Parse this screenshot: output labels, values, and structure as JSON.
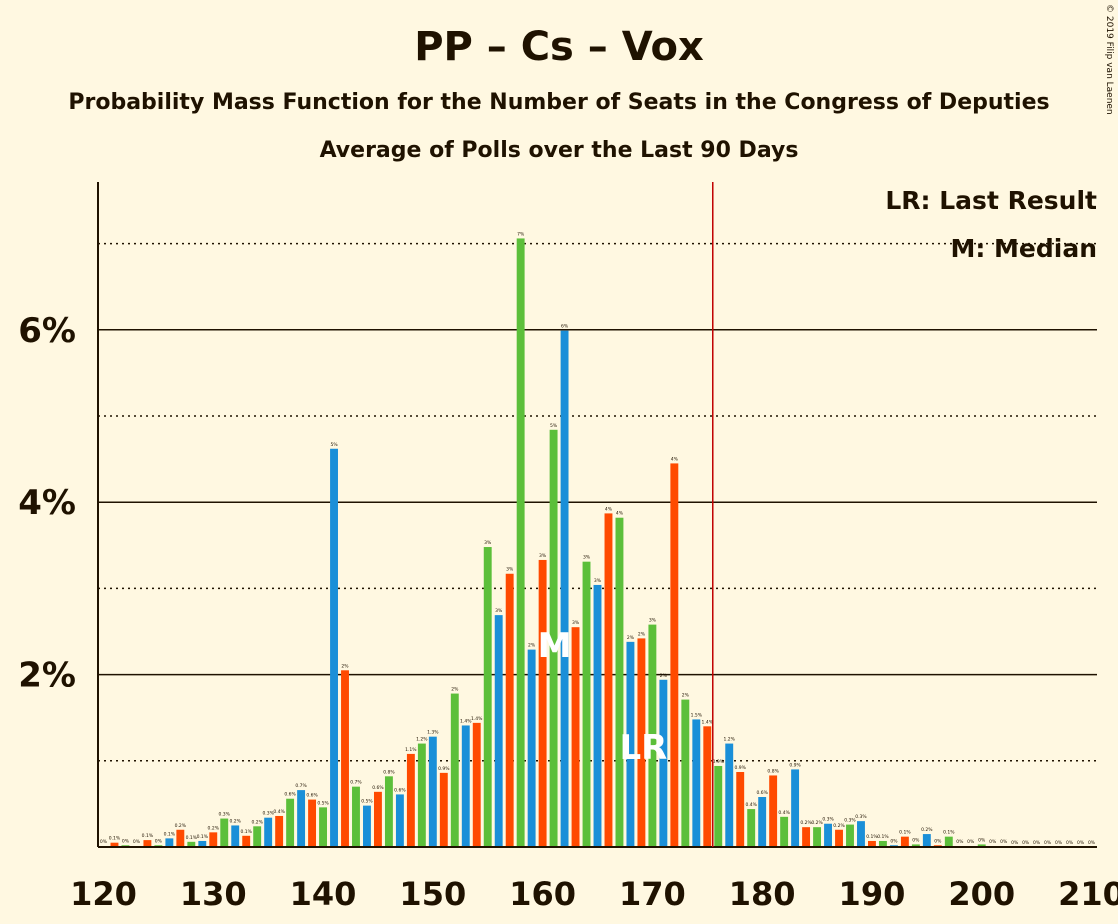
{
  "title": "PP – Cs – Vox",
  "subtitle": "Probability Mass Function for the Number of Seats in the Congress of Deputies",
  "subtitle2": "Average of Polls over the Last 90 Days",
  "copyright": "© 2019 Filip van Laenen",
  "legend": {
    "lr": "LR: Last Result",
    "median": "M: Median"
  },
  "colors": {
    "blue": "#1a8fd8",
    "orange": "#ff4a00",
    "green": "#5cbf3a",
    "majority_line": "#c00000",
    "background": "#fff8e1",
    "text": "#1f1200"
  },
  "chart_data": {
    "type": "bar",
    "xlabel": "",
    "ylabel": "",
    "xlim": [
      120,
      210
    ],
    "ylim": [
      0,
      7.7
    ],
    "y_ticks": [
      "2%",
      "4%",
      "6%"
    ],
    "x_ticks": [
      "120",
      "130",
      "140",
      "150",
      "160",
      "170",
      "180",
      "190",
      "200",
      "210"
    ],
    "majority_line": 176,
    "median_seat": 161,
    "last_result_seat": 169,
    "median_marker": "M",
    "last_result_marker": "LR",
    "bar_labels": [
      {
        "seat": 120,
        "value": 0.01,
        "label": "0%"
      },
      {
        "seat": 121,
        "value": 0.05,
        "label": "0.1%"
      },
      {
        "seat": 122,
        "value": 0.02,
        "label": "0%"
      },
      {
        "seat": 123,
        "value": 0.01,
        "label": "0%"
      },
      {
        "seat": 124,
        "value": 0.08,
        "label": "0.1%"
      },
      {
        "seat": 125,
        "value": 0.02,
        "label": "0%"
      },
      {
        "seat": 126,
        "value": 0.1,
        "label": "0.1%"
      },
      {
        "seat": 127,
        "value": 0.2,
        "label": "0.2%"
      },
      {
        "seat": 128,
        "value": 0.06,
        "label": "0.1%"
      },
      {
        "seat": 129,
        "value": 0.07,
        "label": "0.1%"
      },
      {
        "seat": 130,
        "value": 0.17,
        "label": "0.2%"
      },
      {
        "seat": 131,
        "value": 0.33,
        "label": "0.3%"
      },
      {
        "seat": 132,
        "value": 0.25,
        "label": "0.2%"
      },
      {
        "seat": 133,
        "value": 0.13,
        "label": "0.1%"
      },
      {
        "seat": 134,
        "value": 0.24,
        "label": "0.2%"
      },
      {
        "seat": 135,
        "value": 0.34,
        "label": "0.3%"
      },
      {
        "seat": 136,
        "value": 0.36,
        "label": "0.4%"
      },
      {
        "seat": 137,
        "value": 0.56,
        "label": "0.6%"
      },
      {
        "seat": 138,
        "value": 0.66,
        "label": "0.7%"
      },
      {
        "seat": 139,
        "value": 0.55,
        "label": "0.6%"
      },
      {
        "seat": 140,
        "value": 0.46,
        "label": "0.5%"
      },
      {
        "seat": 141,
        "value": 4.62,
        "label": "5%"
      },
      {
        "seat": 142,
        "value": 2.05,
        "label": "2%"
      },
      {
        "seat": 143,
        "value": 0.7,
        "label": "0.7%"
      },
      {
        "seat": 144,
        "value": 0.48,
        "label": "0.5%"
      },
      {
        "seat": 145,
        "value": 0.64,
        "label": "0.6%"
      },
      {
        "seat": 146,
        "value": 0.82,
        "label": "0.8%"
      },
      {
        "seat": 147,
        "value": 0.61,
        "label": "0.6%"
      },
      {
        "seat": 148,
        "value": 1.08,
        "label": "1.1%"
      },
      {
        "seat": 149,
        "value": 1.2,
        "label": "1.2%"
      },
      {
        "seat": 150,
        "value": 1.28,
        "label": "1.3%"
      },
      {
        "seat": 151,
        "value": 0.86,
        "label": "0.9%"
      },
      {
        "seat": 152,
        "value": 1.78,
        "label": "2%"
      },
      {
        "seat": 153,
        "value": 1.41,
        "label": "1.4%"
      },
      {
        "seat": 154,
        "value": 1.44,
        "label": "1.4%"
      },
      {
        "seat": 155,
        "value": 3.48,
        "label": "3%"
      },
      {
        "seat": 156,
        "value": 2.69,
        "label": "3%"
      },
      {
        "seat": 157,
        "value": 3.17,
        "label": "3%"
      },
      {
        "seat": 158,
        "value": 7.06,
        "label": "7%"
      },
      {
        "seat": 159,
        "value": 2.29,
        "label": "2%"
      },
      {
        "seat": 160,
        "value": 3.33,
        "label": "3%"
      },
      {
        "seat": 161,
        "value": 4.84,
        "label": "5%"
      },
      {
        "seat": 162,
        "value": 5.99,
        "label": "6%"
      },
      {
        "seat": 163,
        "value": 2.55,
        "label": "3%"
      },
      {
        "seat": 164,
        "value": 3.31,
        "label": "3%"
      },
      {
        "seat": 165,
        "value": 3.04,
        "label": "3%"
      },
      {
        "seat": 166,
        "value": 3.87,
        "label": "4%"
      },
      {
        "seat": 167,
        "value": 3.82,
        "label": "4%"
      },
      {
        "seat": 168,
        "value": 2.38,
        "label": "2%"
      },
      {
        "seat": 169,
        "value": 2.42,
        "label": "2%"
      },
      {
        "seat": 170,
        "value": 2.58,
        "label": "3%"
      },
      {
        "seat": 171,
        "value": 1.94,
        "label": "2%"
      },
      {
        "seat": 172,
        "value": 4.45,
        "label": "4%"
      },
      {
        "seat": 173,
        "value": 1.71,
        "label": "2%"
      },
      {
        "seat": 174,
        "value": 1.48,
        "label": "1.5%"
      },
      {
        "seat": 175,
        "value": 1.4,
        "label": "1.4%"
      },
      {
        "seat": 176,
        "value": 0.94,
        "label": "0.9%"
      },
      {
        "seat": 177,
        "value": 1.2,
        "label": "1.2%"
      },
      {
        "seat": 178,
        "value": 0.87,
        "label": "0.9%"
      },
      {
        "seat": 179,
        "value": 0.44,
        "label": "0.4%"
      },
      {
        "seat": 180,
        "value": 0.58,
        "label": "0.6%"
      },
      {
        "seat": 181,
        "value": 0.83,
        "label": "0.8%"
      },
      {
        "seat": 182,
        "value": 0.35,
        "label": "0.4%"
      },
      {
        "seat": 183,
        "value": 0.9,
        "label": "0.9%"
      },
      {
        "seat": 184,
        "value": 0.23,
        "label": "0.2%"
      },
      {
        "seat": 185,
        "value": 0.23,
        "label": "0.2%"
      },
      {
        "seat": 186,
        "value": 0.27,
        "label": "0.3%"
      },
      {
        "seat": 187,
        "value": 0.2,
        "label": "0.2%"
      },
      {
        "seat": 188,
        "value": 0.26,
        "label": "0.3%"
      },
      {
        "seat": 189,
        "value": 0.3,
        "label": "0.3%"
      },
      {
        "seat": 190,
        "value": 0.07,
        "label": "0.1%"
      },
      {
        "seat": 191,
        "value": 0.07,
        "label": "0.1%"
      },
      {
        "seat": 192,
        "value": 0.02,
        "label": "0%"
      },
      {
        "seat": 193,
        "value": 0.12,
        "label": "0.1%"
      },
      {
        "seat": 194,
        "value": 0.03,
        "label": "0%"
      },
      {
        "seat": 195,
        "value": 0.15,
        "label": "0.2%"
      },
      {
        "seat": 196,
        "value": 0.02,
        "label": "0%"
      },
      {
        "seat": 197,
        "value": 0.12,
        "label": "0.1%"
      },
      {
        "seat": 198,
        "value": 0.01,
        "label": "0%"
      },
      {
        "seat": 199,
        "value": 0.01,
        "label": "0%"
      },
      {
        "seat": 200,
        "value": 0.03,
        "label": "0%"
      },
      {
        "seat": 201,
        "value": 0.01,
        "label": "0%"
      },
      {
        "seat": 202,
        "value": 0.01,
        "label": "0%"
      },
      {
        "seat": 203,
        "value": 0,
        "label": "0%"
      },
      {
        "seat": 204,
        "value": 0,
        "label": "0%"
      },
      {
        "seat": 205,
        "value": 0,
        "label": "0%"
      },
      {
        "seat": 206,
        "value": 0,
        "label": "0%"
      },
      {
        "seat": 207,
        "value": 0,
        "label": "0%"
      },
      {
        "seat": 208,
        "value": 0,
        "label": "0%"
      },
      {
        "seat": 209,
        "value": 0,
        "label": "0%"
      },
      {
        "seat": 210,
        "value": 0,
        "label": "0%"
      }
    ]
  }
}
